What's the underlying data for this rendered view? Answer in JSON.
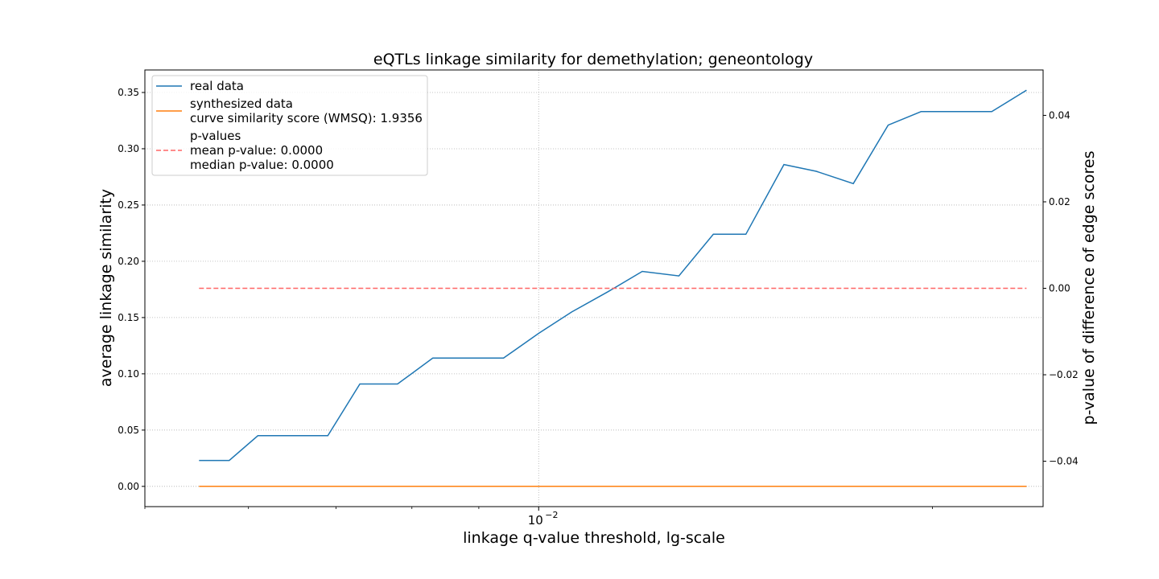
{
  "chart_data": {
    "type": "line",
    "title": "eQTLs linkage similarity for demethylation; geneontology",
    "xlabel": "linkage q-value threshold, lg-scale",
    "ylabel": "average linkage similarity",
    "y2label": "p-value of difference of edge scores",
    "xscale": "log",
    "grid": true,
    "legend_position": "top-left",
    "xlim": [
      0.005,
      0.0243
    ],
    "ylim": [
      -0.018,
      0.37
    ],
    "y2lim": [
      -0.0505,
      0.0505
    ],
    "x_tick_labels": [
      {
        "value": 0.01,
        "base": "10",
        "exp": "−2"
      }
    ],
    "y_ticks": [
      {
        "value": 0.0,
        "label": "0.00"
      },
      {
        "value": 0.05,
        "label": "0.05"
      },
      {
        "value": 0.1,
        "label": "0.10"
      },
      {
        "value": 0.15,
        "label": "0.15"
      },
      {
        "value": 0.2,
        "label": "0.20"
      },
      {
        "value": 0.25,
        "label": "0.25"
      },
      {
        "value": 0.3,
        "label": "0.30"
      },
      {
        "value": 0.35,
        "label": "0.35"
      }
    ],
    "y2_ticks": [
      {
        "value": -0.04,
        "label": "−0.04"
      },
      {
        "value": -0.02,
        "label": "−0.02"
      },
      {
        "value": 0.0,
        "label": "0.00"
      },
      {
        "value": 0.02,
        "label": "0.02"
      },
      {
        "value": 0.04,
        "label": "0.04"
      }
    ],
    "x": [
      0.0055,
      0.0058,
      0.0061,
      0.0065,
      0.0069,
      0.0073,
      0.0078,
      0.0083,
      0.0088,
      0.0094,
      0.01,
      0.0106,
      0.0113,
      0.012,
      0.0128,
      0.0136,
      0.0144,
      0.0154,
      0.0163,
      0.0174,
      0.0185,
      0.0196,
      0.0209,
      0.0222,
      0.0236
    ],
    "series": [
      {
        "name": "real data",
        "color": "#1f77b4",
        "axis": "left",
        "values": [
          0.023,
          0.023,
          0.045,
          0.045,
          0.045,
          0.091,
          0.091,
          0.114,
          0.114,
          0.114,
          0.136,
          0.155,
          0.173,
          0.191,
          0.187,
          0.224,
          0.224,
          0.286,
          0.28,
          0.269,
          0.321,
          0.333,
          0.333,
          0.333,
          0.352
        ]
      },
      {
        "name": "synthesized data",
        "color": "#ff7f0e",
        "axis": "left",
        "values": [
          0,
          0,
          0,
          0,
          0,
          0,
          0,
          0,
          0,
          0,
          0,
          0,
          0,
          0,
          0,
          0,
          0,
          0,
          0,
          0,
          0,
          0,
          0,
          0,
          0
        ]
      },
      {
        "name": "p-values",
        "color": "#ff6666",
        "axis": "right",
        "dashed": true,
        "values": [
          0,
          0,
          0,
          0,
          0,
          0,
          0,
          0,
          0,
          0,
          0,
          0,
          0,
          0,
          0,
          0,
          0,
          0,
          0,
          0,
          0,
          0,
          0,
          0,
          0
        ]
      }
    ],
    "legend": [
      {
        "series": 0,
        "lines": [
          "real data"
        ]
      },
      {
        "series": 1,
        "lines": [
          "synthesized data",
          "curve similarity score (WMSQ): 1.9356"
        ]
      },
      {
        "series": 2,
        "lines": [
          "p-values",
          "mean p-value: 0.0000",
          "median p-value: 0.0000"
        ]
      }
    ]
  }
}
